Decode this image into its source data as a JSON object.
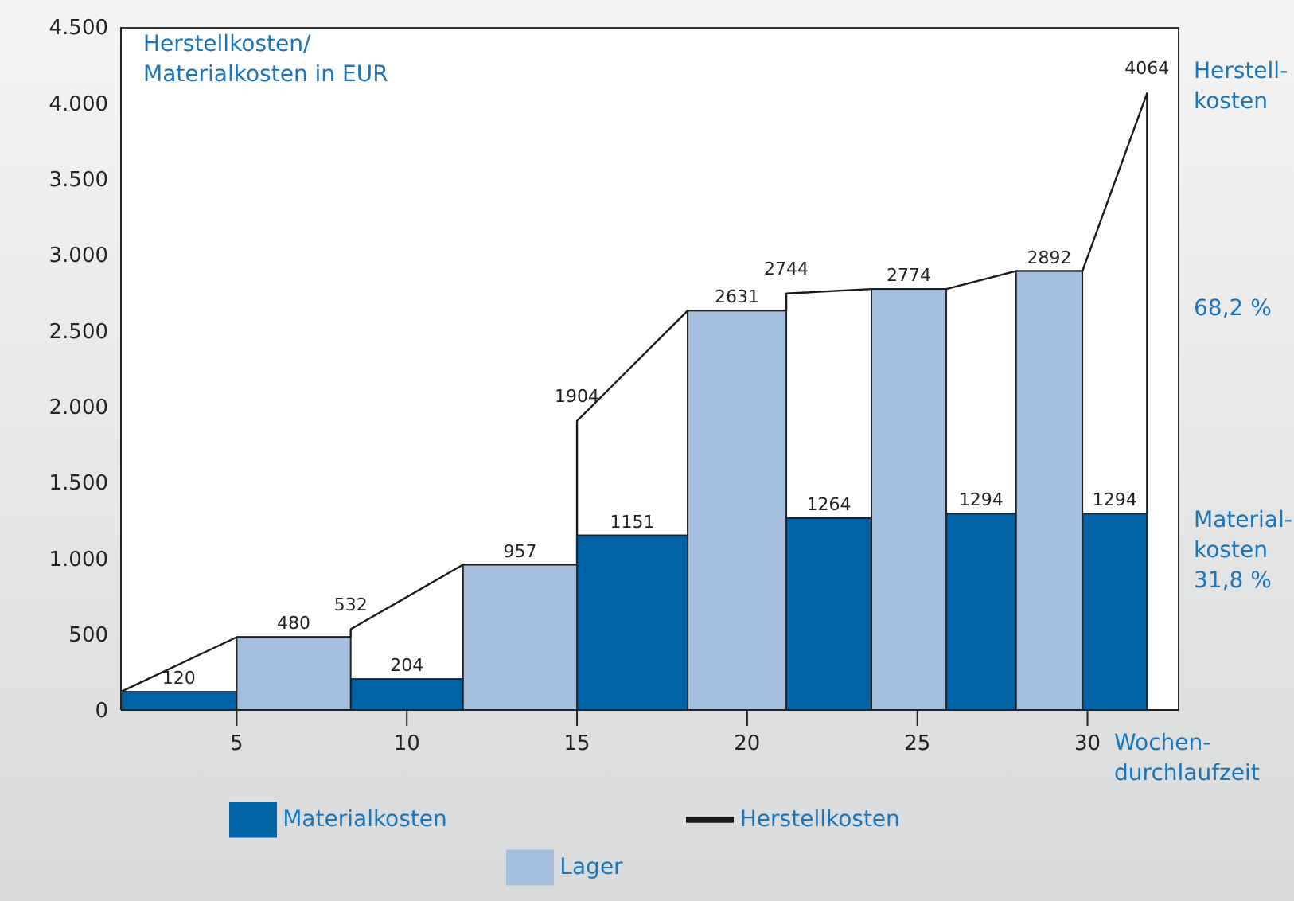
{
  "chart_data": {
    "type": "bar",
    "ylabel": "Herstellkosten/ Materialkosten in EUR",
    "xlabel": "Wochen-durchlaufzeit",
    "xlim": [
      1.6,
      32.7
    ],
    "xticks": [
      5,
      10,
      15,
      20,
      25,
      30
    ],
    "ylim": [
      0,
      4500
    ],
    "yticks": [
      {
        "value": 0,
        "label": "0"
      },
      {
        "value": 500,
        "label": "500"
      },
      {
        "value": 1000,
        "label": "1.000"
      },
      {
        "value": 1500,
        "label": "1.500"
      },
      {
        "value": 2000,
        "label": "2.000"
      },
      {
        "value": 2500,
        "label": "2.500"
      },
      {
        "value": 3000,
        "label": "3.000"
      },
      {
        "value": 3500,
        "label": "3.500"
      },
      {
        "value": 4000,
        "label": "4.000"
      },
      {
        "value": 4500,
        "label": "4.500"
      }
    ],
    "grid": false,
    "legend": "bottom",
    "series": [
      {
        "name": "Materialkosten",
        "color": "#0063a6",
        "x": [
          3.3,
          10,
          16.7,
          22.5,
          26.9,
          30.8
        ],
        "values": [
          120,
          204,
          1151,
          1264,
          1294,
          1294
        ],
        "value_labels": [
          "120",
          "204",
          "1151",
          "1264",
          "1294",
          "1294"
        ]
      },
      {
        "name": "Herstellkosten",
        "type": "line",
        "color": "#1a1a1a",
        "x": [
          1.6,
          5,
          8.35,
          8.35,
          11.65,
          15,
          15,
          18.25,
          21.15,
          21.15,
          23.65,
          25.85,
          27.9,
          29.85,
          31.75,
          31.75
        ],
        "values": [
          120,
          480,
          480,
          532,
          957,
          957,
          1904,
          2631,
          2631,
          2744,
          2774,
          2774,
          2892,
          2892,
          4064,
          1294
        ],
        "value_labels": [
          null,
          null,
          null,
          "532",
          null,
          null,
          "1904",
          null,
          null,
          "2744",
          null,
          null,
          null,
          null,
          "4064",
          null
        ]
      },
      {
        "name": "Lager",
        "color": "#a3bfdd",
        "x": [
          6.7,
          13.3,
          19.8,
          24.8,
          28.9
        ],
        "values": [
          480,
          957,
          2631,
          2774,
          2892
        ],
        "value_labels": [
          "480",
          "957",
          "2631",
          "2774",
          "2892"
        ]
      }
    ],
    "annotations": [
      "Herstell-kosten",
      "68,2 %",
      "Material-kosten 31,8 %"
    ]
  }
}
